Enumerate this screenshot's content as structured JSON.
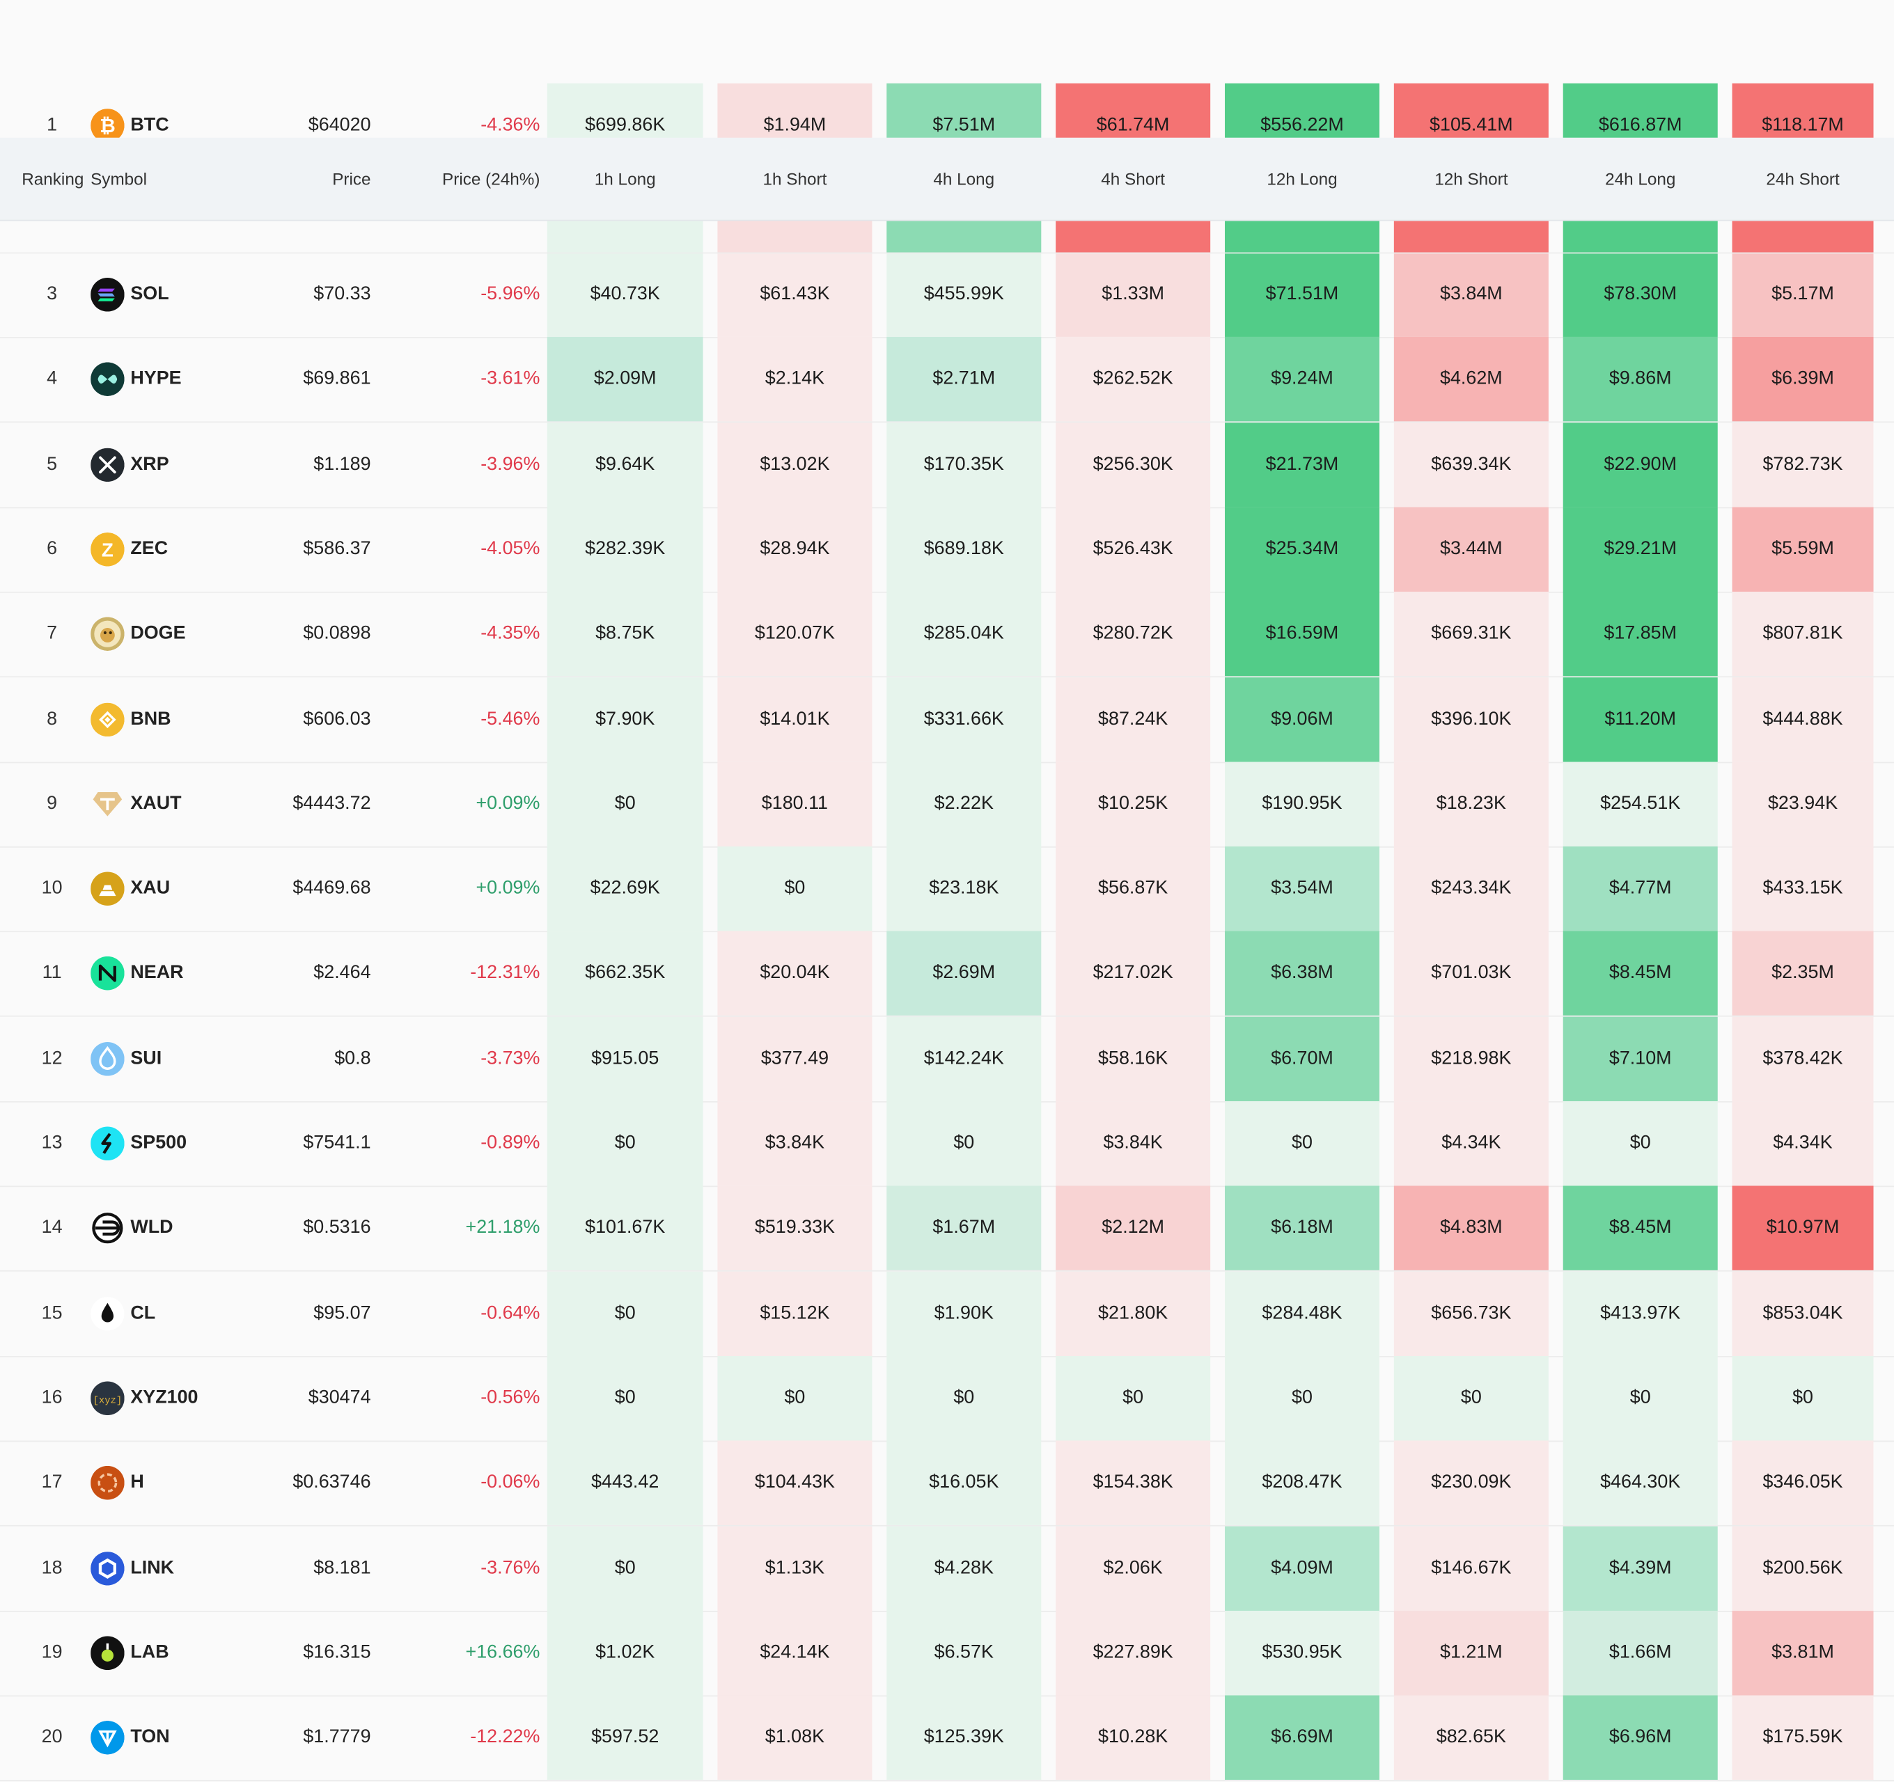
{
  "header": {
    "ranking": "Ranking",
    "symbol": "Symbol",
    "price": "Price",
    "change": "Price (24h%)",
    "cols": [
      "1h Long",
      "1h Short",
      "4h Long",
      "4h Short",
      "12h Long",
      "12h Short",
      "24h Long",
      "24h Short"
    ]
  },
  "colors": {
    "positive_change": "#2e9e6b",
    "negative_change": "#e0394a",
    "green_scale": [
      "#e6f4ec",
      "#d2ede0",
      "#c6eadb",
      "#b3e6ce",
      "#9fe0c1",
      "#8cdbb3",
      "#6fd49e",
      "#52cc88"
    ],
    "red_scale": [
      "#f9e9e9",
      "#f8dede",
      "#f8d3d3",
      "#f7c2c2",
      "#f7b3b3",
      "#f69f9f",
      "#f58585",
      "#f47373"
    ]
  },
  "rows": [
    {
      "rank": "1",
      "symbol": "BTC",
      "icon": "bitcoin-icon",
      "price": "$64020",
      "change": "-4.36%",
      "dir": "down",
      "values": [
        "$699.86K",
        "$1.94M",
        "$7.51M",
        "$61.74M",
        "$556.22M",
        "$105.41M",
        "$616.87M",
        "$118.17M"
      ],
      "levels": [
        0,
        1,
        5,
        7,
        7,
        7,
        7,
        7
      ]
    },
    {
      "rank": "3",
      "symbol": "SOL",
      "icon": "solana-icon",
      "price": "$70.33",
      "change": "-5.96%",
      "dir": "down",
      "values": [
        "$40.73K",
        "$61.43K",
        "$455.99K",
        "$1.33M",
        "$71.51M",
        "$3.84M",
        "$78.30M",
        "$5.17M"
      ],
      "levels": [
        0,
        0,
        0,
        1,
        7,
        3,
        7,
        3
      ]
    },
    {
      "rank": "4",
      "symbol": "HYPE",
      "icon": "hyperliquid-icon",
      "price": "$69.861",
      "change": "-3.61%",
      "dir": "down",
      "values": [
        "$2.09M",
        "$2.14K",
        "$2.71M",
        "$262.52K",
        "$9.24M",
        "$4.62M",
        "$9.86M",
        "$6.39M"
      ],
      "levels": [
        2,
        0,
        2,
        0,
        6,
        4,
        6,
        5
      ]
    },
    {
      "rank": "5",
      "symbol": "XRP",
      "icon": "xrp-icon",
      "price": "$1.189",
      "change": "-3.96%",
      "dir": "down",
      "values": [
        "$9.64K",
        "$13.02K",
        "$170.35K",
        "$256.30K",
        "$21.73M",
        "$639.34K",
        "$22.90M",
        "$782.73K"
      ],
      "levels": [
        0,
        0,
        0,
        0,
        7,
        0,
        7,
        0
      ]
    },
    {
      "rank": "6",
      "symbol": "ZEC",
      "icon": "zcash-icon",
      "price": "$586.37",
      "change": "-4.05%",
      "dir": "down",
      "values": [
        "$282.39K",
        "$28.94K",
        "$689.18K",
        "$526.43K",
        "$25.34M",
        "$3.44M",
        "$29.21M",
        "$5.59M"
      ],
      "levels": [
        0,
        0,
        0,
        0,
        7,
        3,
        7,
        4
      ]
    },
    {
      "rank": "7",
      "symbol": "DOGE",
      "icon": "dogecoin-icon",
      "price": "$0.0898",
      "change": "-4.35%",
      "dir": "down",
      "values": [
        "$8.75K",
        "$120.07K",
        "$285.04K",
        "$280.72K",
        "$16.59M",
        "$669.31K",
        "$17.85M",
        "$807.81K"
      ],
      "levels": [
        0,
        0,
        0,
        0,
        7,
        0,
        7,
        0
      ]
    },
    {
      "rank": "8",
      "symbol": "BNB",
      "icon": "bnb-icon",
      "price": "$606.03",
      "change": "-5.46%",
      "dir": "down",
      "values": [
        "$7.90K",
        "$14.01K",
        "$331.66K",
        "$87.24K",
        "$9.06M",
        "$396.10K",
        "$11.20M",
        "$444.88K"
      ],
      "levels": [
        0,
        0,
        0,
        0,
        6,
        0,
        7,
        0
      ]
    },
    {
      "rank": "9",
      "symbol": "XAUT",
      "icon": "tether-gold-icon",
      "price": "$4443.72",
      "change": "+0.09%",
      "dir": "up",
      "values": [
        "$0",
        "$180.11",
        "$2.22K",
        "$10.25K",
        "$190.95K",
        "$18.23K",
        "$254.51K",
        "$23.94K"
      ],
      "levels": [
        0,
        0,
        0,
        0,
        0,
        0,
        0,
        0
      ]
    },
    {
      "rank": "10",
      "symbol": "XAU",
      "icon": "gold-bars-icon",
      "price": "$4469.68",
      "change": "+0.09%",
      "dir": "up",
      "values": [
        "$22.69K",
        "$0",
        "$23.18K",
        "$56.87K",
        "$3.54M",
        "$243.34K",
        "$4.77M",
        "$433.15K"
      ],
      "levels": [
        0,
        0,
        0,
        0,
        3,
        0,
        4,
        0
      ],
      "zero_green": [
        1
      ]
    },
    {
      "rank": "11",
      "symbol": "NEAR",
      "icon": "near-icon",
      "price": "$2.464",
      "change": "-12.31%",
      "dir": "down",
      "values": [
        "$662.35K",
        "$20.04K",
        "$2.69M",
        "$217.02K",
        "$6.38M",
        "$701.03K",
        "$8.45M",
        "$2.35M"
      ],
      "levels": [
        0,
        0,
        2,
        0,
        5,
        0,
        6,
        2
      ]
    },
    {
      "rank": "12",
      "symbol": "SUI",
      "icon": "sui-icon",
      "price": "$0.8",
      "change": "-3.73%",
      "dir": "down",
      "values": [
        "$915.05",
        "$377.49",
        "$142.24K",
        "$58.16K",
        "$6.70M",
        "$218.98K",
        "$7.10M",
        "$378.42K"
      ],
      "levels": [
        0,
        0,
        0,
        0,
        5,
        0,
        5,
        0
      ]
    },
    {
      "rank": "13",
      "symbol": "SP500",
      "icon": "sp500-icon",
      "price": "$7541.1",
      "change": "-0.89%",
      "dir": "down",
      "values": [
        "$0",
        "$3.84K",
        "$0",
        "$3.84K",
        "$0",
        "$4.34K",
        "$0",
        "$4.34K"
      ],
      "levels": [
        0,
        0,
        0,
        0,
        0,
        0,
        0,
        0
      ]
    },
    {
      "rank": "14",
      "symbol": "WLD",
      "icon": "worldcoin-icon",
      "price": "$0.5316",
      "change": "+21.18%",
      "dir": "up",
      "values": [
        "$101.67K",
        "$519.33K",
        "$1.67M",
        "$2.12M",
        "$6.18M",
        "$4.83M",
        "$8.45M",
        "$10.97M"
      ],
      "levels": [
        0,
        0,
        1,
        2,
        4,
        4,
        6,
        7
      ]
    },
    {
      "rank": "15",
      "symbol": "CL",
      "icon": "oil-drop-icon",
      "price": "$95.07",
      "change": "-0.64%",
      "dir": "down",
      "values": [
        "$0",
        "$15.12K",
        "$1.90K",
        "$21.80K",
        "$284.48K",
        "$656.73K",
        "$413.97K",
        "$853.04K"
      ],
      "levels": [
        0,
        0,
        0,
        0,
        0,
        0,
        0,
        0
      ]
    },
    {
      "rank": "16",
      "symbol": "XYZ100",
      "icon": "xyz-icon",
      "price": "$30474",
      "change": "-0.56%",
      "dir": "down",
      "values": [
        "$0",
        "$0",
        "$0",
        "$0",
        "$0",
        "$0",
        "$0",
        "$0"
      ],
      "levels": [
        0,
        0,
        0,
        0,
        0,
        0,
        0,
        0
      ],
      "zero_green": [
        1,
        3,
        5,
        7
      ]
    },
    {
      "rank": "17",
      "symbol": "H",
      "icon": "humanity-icon",
      "price": "$0.63746",
      "change": "-0.06%",
      "dir": "down",
      "values": [
        "$443.42",
        "$104.43K",
        "$16.05K",
        "$154.38K",
        "$208.47K",
        "$230.09K",
        "$464.30K",
        "$346.05K"
      ],
      "levels": [
        0,
        0,
        0,
        0,
        0,
        0,
        0,
        0
      ]
    },
    {
      "rank": "18",
      "symbol": "LINK",
      "icon": "chainlink-icon",
      "price": "$8.181",
      "change": "-3.76%",
      "dir": "down",
      "values": [
        "$0",
        "$1.13K",
        "$4.28K",
        "$2.06K",
        "$4.09M",
        "$146.67K",
        "$4.39M",
        "$200.56K"
      ],
      "levels": [
        0,
        0,
        0,
        0,
        3,
        0,
        3,
        0
      ]
    },
    {
      "rank": "19",
      "symbol": "LAB",
      "icon": "lab-icon",
      "price": "$16.315",
      "change": "+16.66%",
      "dir": "up",
      "values": [
        "$1.02K",
        "$24.14K",
        "$6.57K",
        "$227.89K",
        "$530.95K",
        "$1.21M",
        "$1.66M",
        "$3.81M"
      ],
      "levels": [
        0,
        0,
        0,
        0,
        0,
        1,
        1,
        3
      ]
    },
    {
      "rank": "20",
      "symbol": "TON",
      "icon": "toncoin-icon",
      "price": "$1.7779",
      "change": "-12.22%",
      "dir": "down",
      "values": [
        "$597.52",
        "$1.08K",
        "$125.39K",
        "$10.28K",
        "$6.69M",
        "$82.65K",
        "$6.96M",
        "$175.59K"
      ],
      "levels": [
        0,
        0,
        0,
        0,
        5,
        0,
        5,
        0
      ]
    }
  ]
}
